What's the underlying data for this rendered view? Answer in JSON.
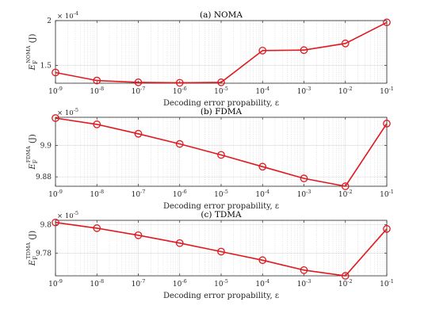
{
  "chart_data": [
    {
      "type": "line",
      "title": "(a) NOMA",
      "xlabel": "Decoding error propability, ε",
      "ylabel": {
        "base": "E",
        "sub": "F",
        "sup": "NOMA",
        "unit": "(J)"
      },
      "x_scale": "log",
      "x": [
        1e-09,
        1e-08,
        1e-07,
        1e-06,
        1e-05,
        0.0001,
        0.001,
        0.01,
        0.1
      ],
      "x_tick_labels": [
        {
          "base": "10",
          "exp": "-9"
        },
        {
          "base": "10",
          "exp": "-8"
        },
        {
          "base": "10",
          "exp": "-7"
        },
        {
          "base": "10",
          "exp": "-6"
        },
        {
          "base": "10",
          "exp": "-5"
        },
        {
          "base": "10",
          "exp": "-4"
        },
        {
          "base": "10",
          "exp": "-3"
        },
        {
          "base": "10",
          "exp": "-2"
        },
        {
          "base": "10",
          "exp": "-1"
        }
      ],
      "y_multiplier": {
        "base": "× 10",
        "exp": "-4"
      },
      "ylim": [
        1.3,
        2.0
      ],
      "y_ticks": [
        1.5,
        2.0
      ],
      "y_tick_labels": [
        "1.5",
        "2"
      ],
      "series": [
        {
          "color": "#e0191f",
          "marker": "circle",
          "values": [
            1.42,
            1.33,
            1.31,
            1.305,
            1.31,
            1.665,
            1.67,
            1.745,
            1.98
          ]
        }
      ],
      "grid": true
    },
    {
      "type": "line",
      "title": "(b) FDMA",
      "xlabel": "Decoding error propability, ε",
      "ylabel": {
        "base": "E",
        "sub": "F",
        "sup": "FDMA",
        "unit": "(J)"
      },
      "x_scale": "log",
      "x": [
        1e-09,
        1e-08,
        1e-07,
        1e-06,
        1e-05,
        0.0001,
        0.001,
        0.01,
        0.1
      ],
      "x_tick_labels": [
        {
          "base": "10",
          "exp": "-9"
        },
        {
          "base": "10",
          "exp": "-8"
        },
        {
          "base": "10",
          "exp": "-7"
        },
        {
          "base": "10",
          "exp": "-6"
        },
        {
          "base": "10",
          "exp": "-5"
        },
        {
          "base": "10",
          "exp": "-4"
        },
        {
          "base": "10",
          "exp": "-3"
        },
        {
          "base": "10",
          "exp": "-2"
        },
        {
          "base": "10",
          "exp": "-1"
        }
      ],
      "y_multiplier": {
        "base": "× 10",
        "exp": "-5"
      },
      "ylim": [
        9.874,
        9.918
      ],
      "y_ticks": [
        9.88,
        9.9
      ],
      "y_tick_labels": [
        "9.88",
        "9.9"
      ],
      "series": [
        {
          "color": "#e0191f",
          "marker": "circle",
          "values": [
            9.9175,
            9.9135,
            9.9075,
            9.901,
            9.894,
            9.8865,
            9.879,
            9.874,
            9.914
          ]
        }
      ],
      "grid": true
    },
    {
      "type": "line",
      "title": "(c) TDMA",
      "xlabel": "Decoding error propability, ε",
      "ylabel": {
        "base": "E",
        "sub": "F",
        "sup": "TDMA",
        "unit": "(J)"
      },
      "x_scale": "log",
      "x": [
        1e-09,
        1e-08,
        1e-07,
        1e-06,
        1e-05,
        0.0001,
        0.001,
        0.01,
        0.1
      ],
      "x_tick_labels": [
        {
          "base": "10",
          "exp": "-9"
        },
        {
          "base": "10",
          "exp": "-8"
        },
        {
          "base": "10",
          "exp": "-7"
        },
        {
          "base": "10",
          "exp": "-6"
        },
        {
          "base": "10",
          "exp": "-5"
        },
        {
          "base": "10",
          "exp": "-4"
        },
        {
          "base": "10",
          "exp": "-3"
        },
        {
          "base": "10",
          "exp": "-2"
        },
        {
          "base": "10",
          "exp": "-1"
        }
      ],
      "y_multiplier": {
        "base": "× 10",
        "exp": "-5"
      },
      "ylim": [
        9.764,
        9.803
      ],
      "y_ticks": [
        9.78,
        9.8
      ],
      "y_tick_labels": [
        "9.78",
        "9.8"
      ],
      "series": [
        {
          "color": "#e0191f",
          "marker": "circle",
          "values": [
            9.8015,
            9.7975,
            9.7925,
            9.787,
            9.781,
            9.775,
            9.768,
            9.764,
            9.797
          ]
        }
      ],
      "grid": true
    }
  ]
}
